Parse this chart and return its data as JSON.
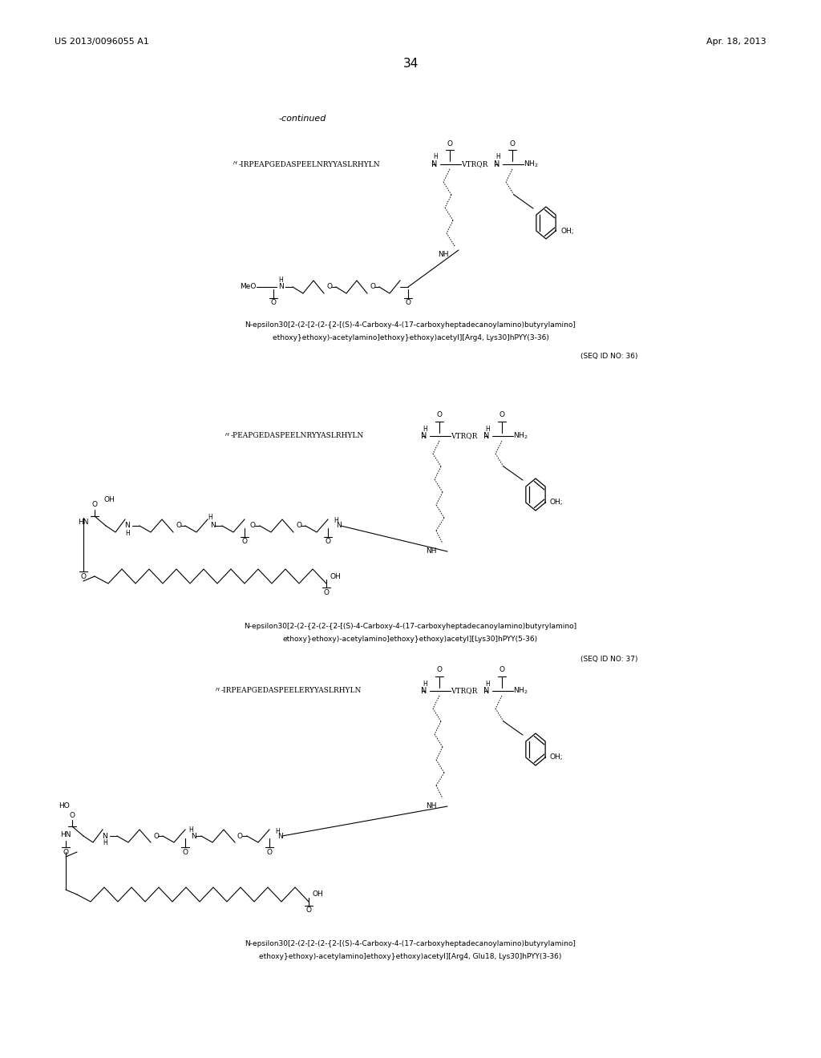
{
  "background_color": "#ffffff",
  "page_width": 10.24,
  "page_height": 13.2,
  "header_left": "US 2013/0096055 A1",
  "header_right": "Apr. 18, 2013",
  "page_number": "34",
  "continued_text": "-continued",
  "seq_id_36": "(SEQ ID NO: 36)",
  "seq_id_37": "(SEQ ID NO: 37)",
  "cap1_l1": "N-epsilon30[2-(2-[2-(2-{2-[(S)-4-Carboxy-4-(17-carboxyheptadecanoylamino)butyrylamino]",
  "cap1_l2": "ethoxy}ethoxy)-acetylamino]ethoxy}ethoxy)acetyl][Arg4, Lys30]hPYY(3-36)",
  "cap2_l1": "N-epsilon30[2-(2-{2-(2-{2-[(S)-4-Carboxy-4-(17-carboxyheptadecanoylamino)butyrylamino]",
  "cap2_l2": "ethoxy}ethoxy)-acetylamino]ethoxy}ethoxy)acetyl][Lys30]hPYY(5-36)",
  "cap3_l1": "N-epsilon30[2-(2-[2-(2-{2-[(S)-4-Carboxy-4-(17-carboxyheptadecanoylamino)butyrylamino]",
  "cap3_l2": "ethoxy}ethoxy)-acetylamino]ethoxy}ethoxy)acetyl][Arg4, Glu18, Lys30]hPYY(3-36)",
  "pep1": "H-IRPEAPGEDASPEELNRYYASLRHYLN",
  "pep2": "H-PEAPGEDASPEELNRYYASLRHYLN",
  "pep3": "H-IRPEAPGEDASPEELERYYASLRHYLN"
}
